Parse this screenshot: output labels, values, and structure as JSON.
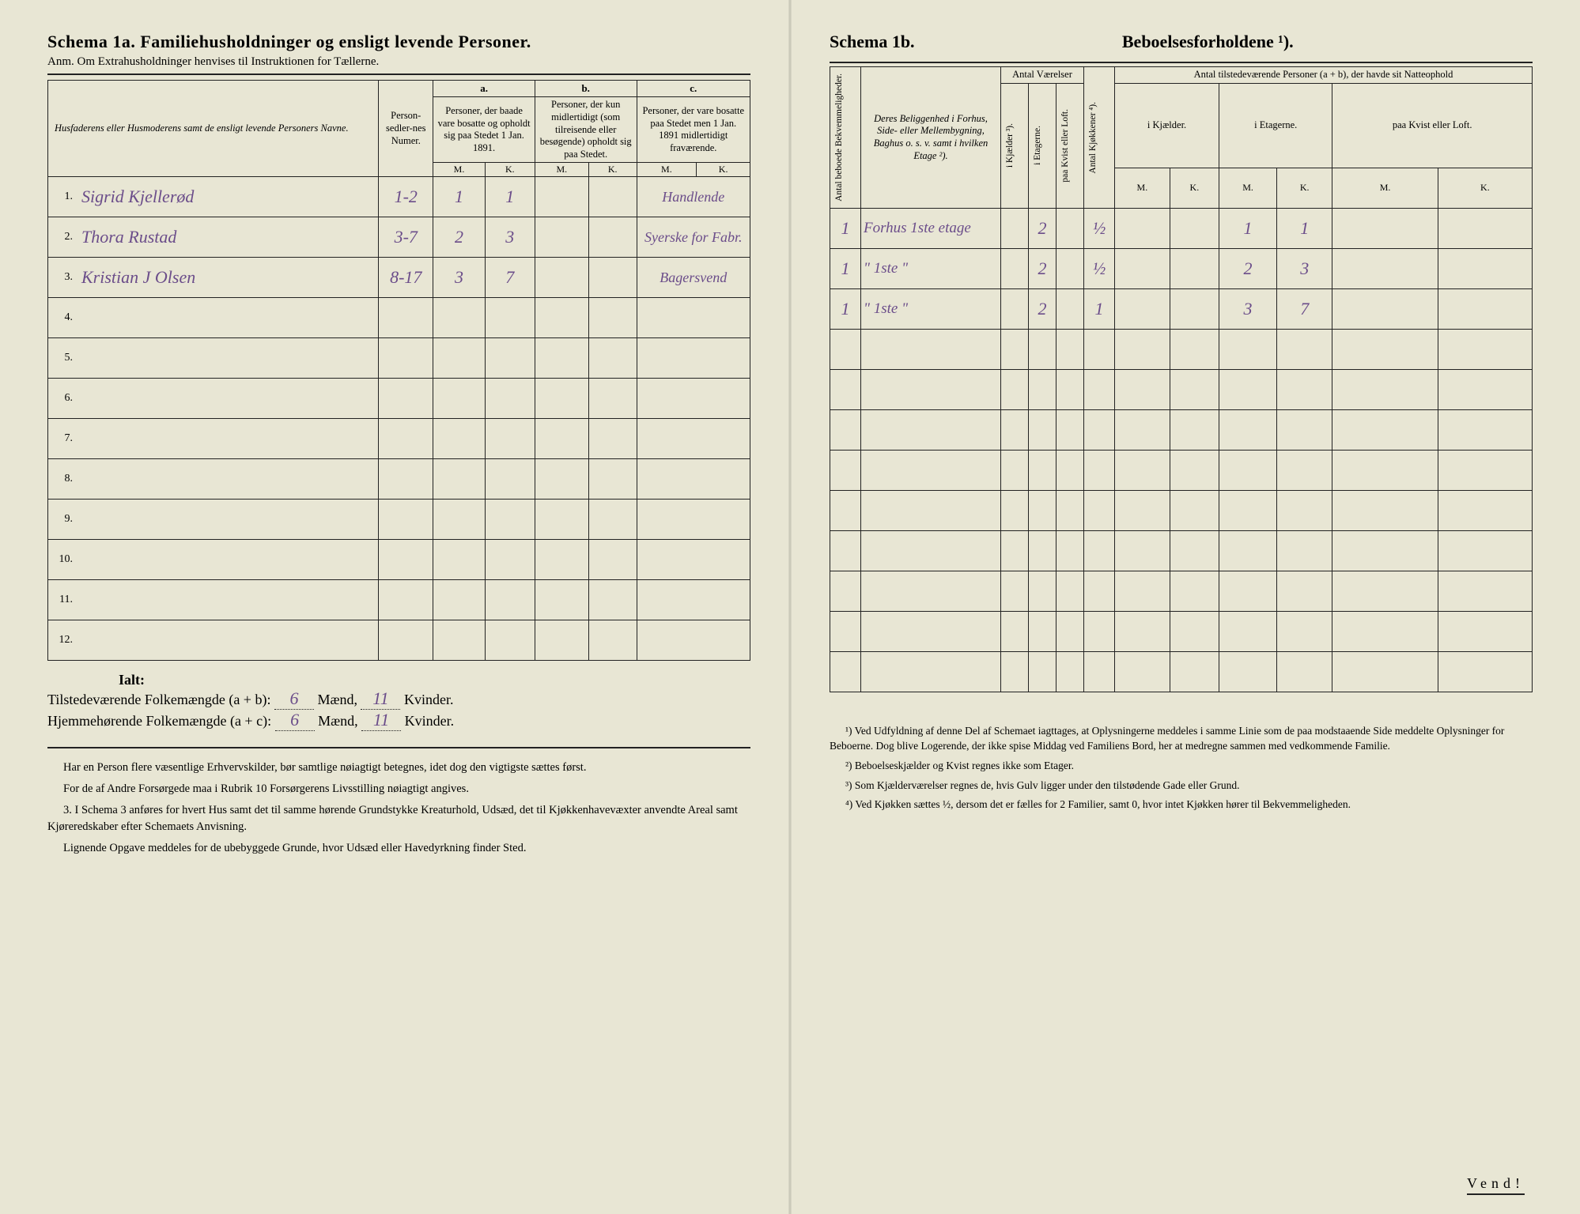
{
  "colors": {
    "paper": "#e8e6d4",
    "ink": "#222222",
    "handwriting": "#6b4d8a"
  },
  "left": {
    "title": "Schema 1a.  Familiehusholdninger og ensligt levende Personer.",
    "subtitle": "Anm. Om Extrahusholdninger henvises til Instruktionen for Tællerne.",
    "columns": {
      "name_header": "Husfaderens eller Husmoderens samt de ensligt levende Personers Navne.",
      "person_nr": "Person-sedler-nes Numer.",
      "a_letter": "a.",
      "a_text": "Personer, der baade vare bosatte og opholdt sig paa Stedet 1 Jan. 1891.",
      "b_letter": "b.",
      "b_text": "Personer, der kun midlertidigt (som tilreisende eller besøgende) opholdt sig paa Stedet.",
      "c_letter": "c.",
      "c_text": "Personer, der vare bosatte paa Stedet men 1 Jan. 1891 midlertidigt fraværende.",
      "m": "M.",
      "k": "K."
    },
    "rows": [
      {
        "n": "1.",
        "name": "Sigrid Kjellerød",
        "nr": "1-2",
        "am": "1",
        "ak": "1",
        "note": "Handlende"
      },
      {
        "n": "2.",
        "name": "Thora Rustad",
        "nr": "3-7",
        "am": "2",
        "ak": "3",
        "note": "Syerske for Fabr."
      },
      {
        "n": "3.",
        "name": "Kristian J Olsen",
        "nr": "8-17",
        "am": "3",
        "ak": "7",
        "note": "Bagersvend"
      },
      {
        "n": "4.",
        "name": "",
        "nr": "",
        "am": "",
        "ak": "",
        "note": ""
      },
      {
        "n": "5.",
        "name": "",
        "nr": "",
        "am": "",
        "ak": "",
        "note": ""
      },
      {
        "n": "6.",
        "name": "",
        "nr": "",
        "am": "",
        "ak": "",
        "note": ""
      },
      {
        "n": "7.",
        "name": "",
        "nr": "",
        "am": "",
        "ak": "",
        "note": ""
      },
      {
        "n": "8.",
        "name": "",
        "nr": "",
        "am": "",
        "ak": "",
        "note": ""
      },
      {
        "n": "9.",
        "name": "",
        "nr": "",
        "am": "",
        "ak": "",
        "note": ""
      },
      {
        "n": "10.",
        "name": "",
        "nr": "",
        "am": "",
        "ak": "",
        "note": ""
      },
      {
        "n": "11.",
        "name": "",
        "nr": "",
        "am": "",
        "ak": "",
        "note": ""
      },
      {
        "n": "12.",
        "name": "",
        "nr": "",
        "am": "",
        "ak": "",
        "note": ""
      }
    ],
    "totals": {
      "ialt": "Ialt:",
      "line1_label_a": "Tilstedeværende Folkemængde (a + b): ",
      "line1_m": "6",
      "line1_mid": " Mænd, ",
      "line1_k": "11",
      "line1_end": " Kvinder.",
      "line2_label_a": "Hjemmehørende Folkemængde (a + c): ",
      "line2_m": "6",
      "line2_k": "11"
    },
    "notes": {
      "p1": "Har en Person flere væsentlige Erhvervskilder, bør samtlige nøiagtigt betegnes, idet dog den vigtigste sættes først.",
      "p2": "For de af Andre Forsørgede maa i Rubrik 10 Forsørgerens Livsstilling nøiagtigt angives.",
      "p3": "3. I Schema 3 anføres for hvert Hus samt det til samme hørende Grundstykke Kreaturhold, Udsæd, det til Kjøkkenhavevæxter anvendte Areal samt Kjøreredskaber efter Schemaets Anvisning.",
      "p4": "Lignende Opgave meddeles for de ubebyggede Grunde, hvor Udsæd eller Havedyrkning finder Sted."
    }
  },
  "right": {
    "title_left": "Schema 1b.",
    "title_right": "Beboelsesforholdene ¹).",
    "columns": {
      "bekv": "Antal beboede Bekvemmeligheder.",
      "belig": "Deres Beliggenhed i Forhus, Side- eller Mellembygning, Baghus o. s. v. samt i hvilken Etage ²).",
      "ant_vaer": "Antal Værelser",
      "kjeld": "i Kjælder ³).",
      "etag": "i Etagerne.",
      "kvist": "paa Kvist eller Loft.",
      "kjokk": "Antal Kjøkkener ⁴).",
      "tilst": "Antal tilstedeværende Personer (a + b), der havde sit Natteophold",
      "ikj": "i Kjælder.",
      "iet": "i Etagerne.",
      "pkv": "paa Kvist eller Loft.",
      "m": "M.",
      "k": "K."
    },
    "rows": [
      {
        "bekv": "1",
        "belig": "Forhus 1ste etage",
        "kj": "",
        "et": "2",
        "kv": "",
        "kk": "½",
        "km": "",
        "kk2": "",
        "em": "1",
        "ek": "1",
        "lm": "",
        "lk": ""
      },
      {
        "bekv": "1",
        "belig": "\"    1ste    \"",
        "kj": "",
        "et": "2",
        "kv": "",
        "kk": "½",
        "km": "",
        "kk2": "",
        "em": "2",
        "ek": "3",
        "lm": "",
        "lk": ""
      },
      {
        "bekv": "1",
        "belig": "\"    1ste    \"",
        "kj": "",
        "et": "2",
        "kv": "",
        "kk": "1",
        "km": "",
        "kk2": "",
        "em": "3",
        "ek": "7",
        "lm": "",
        "lk": ""
      }
    ],
    "notes": {
      "n1": "¹) Ved Udfyldning af denne Del af Schemaet iagttages, at Oplysningerne meddeles i samme Linie som de paa modstaaende Side meddelte Oplysninger for Beboerne. Dog blive Logerende, der ikke spise Middag ved Familiens Bord, her at medregne sammen med vedkommende Familie.",
      "n2": "²) Beboelseskjælder og Kvist regnes ikke som Etager.",
      "n3": "³) Som Kjælderværelser regnes de, hvis Gulv ligger under den tilstødende Gade eller Grund.",
      "n4": "⁴) Ved Kjøkken sættes ½, dersom det er fælles for 2 Familier, samt 0, hvor intet Kjøkken hører til Bekvemmeligheden."
    },
    "vend": "Vend!"
  }
}
